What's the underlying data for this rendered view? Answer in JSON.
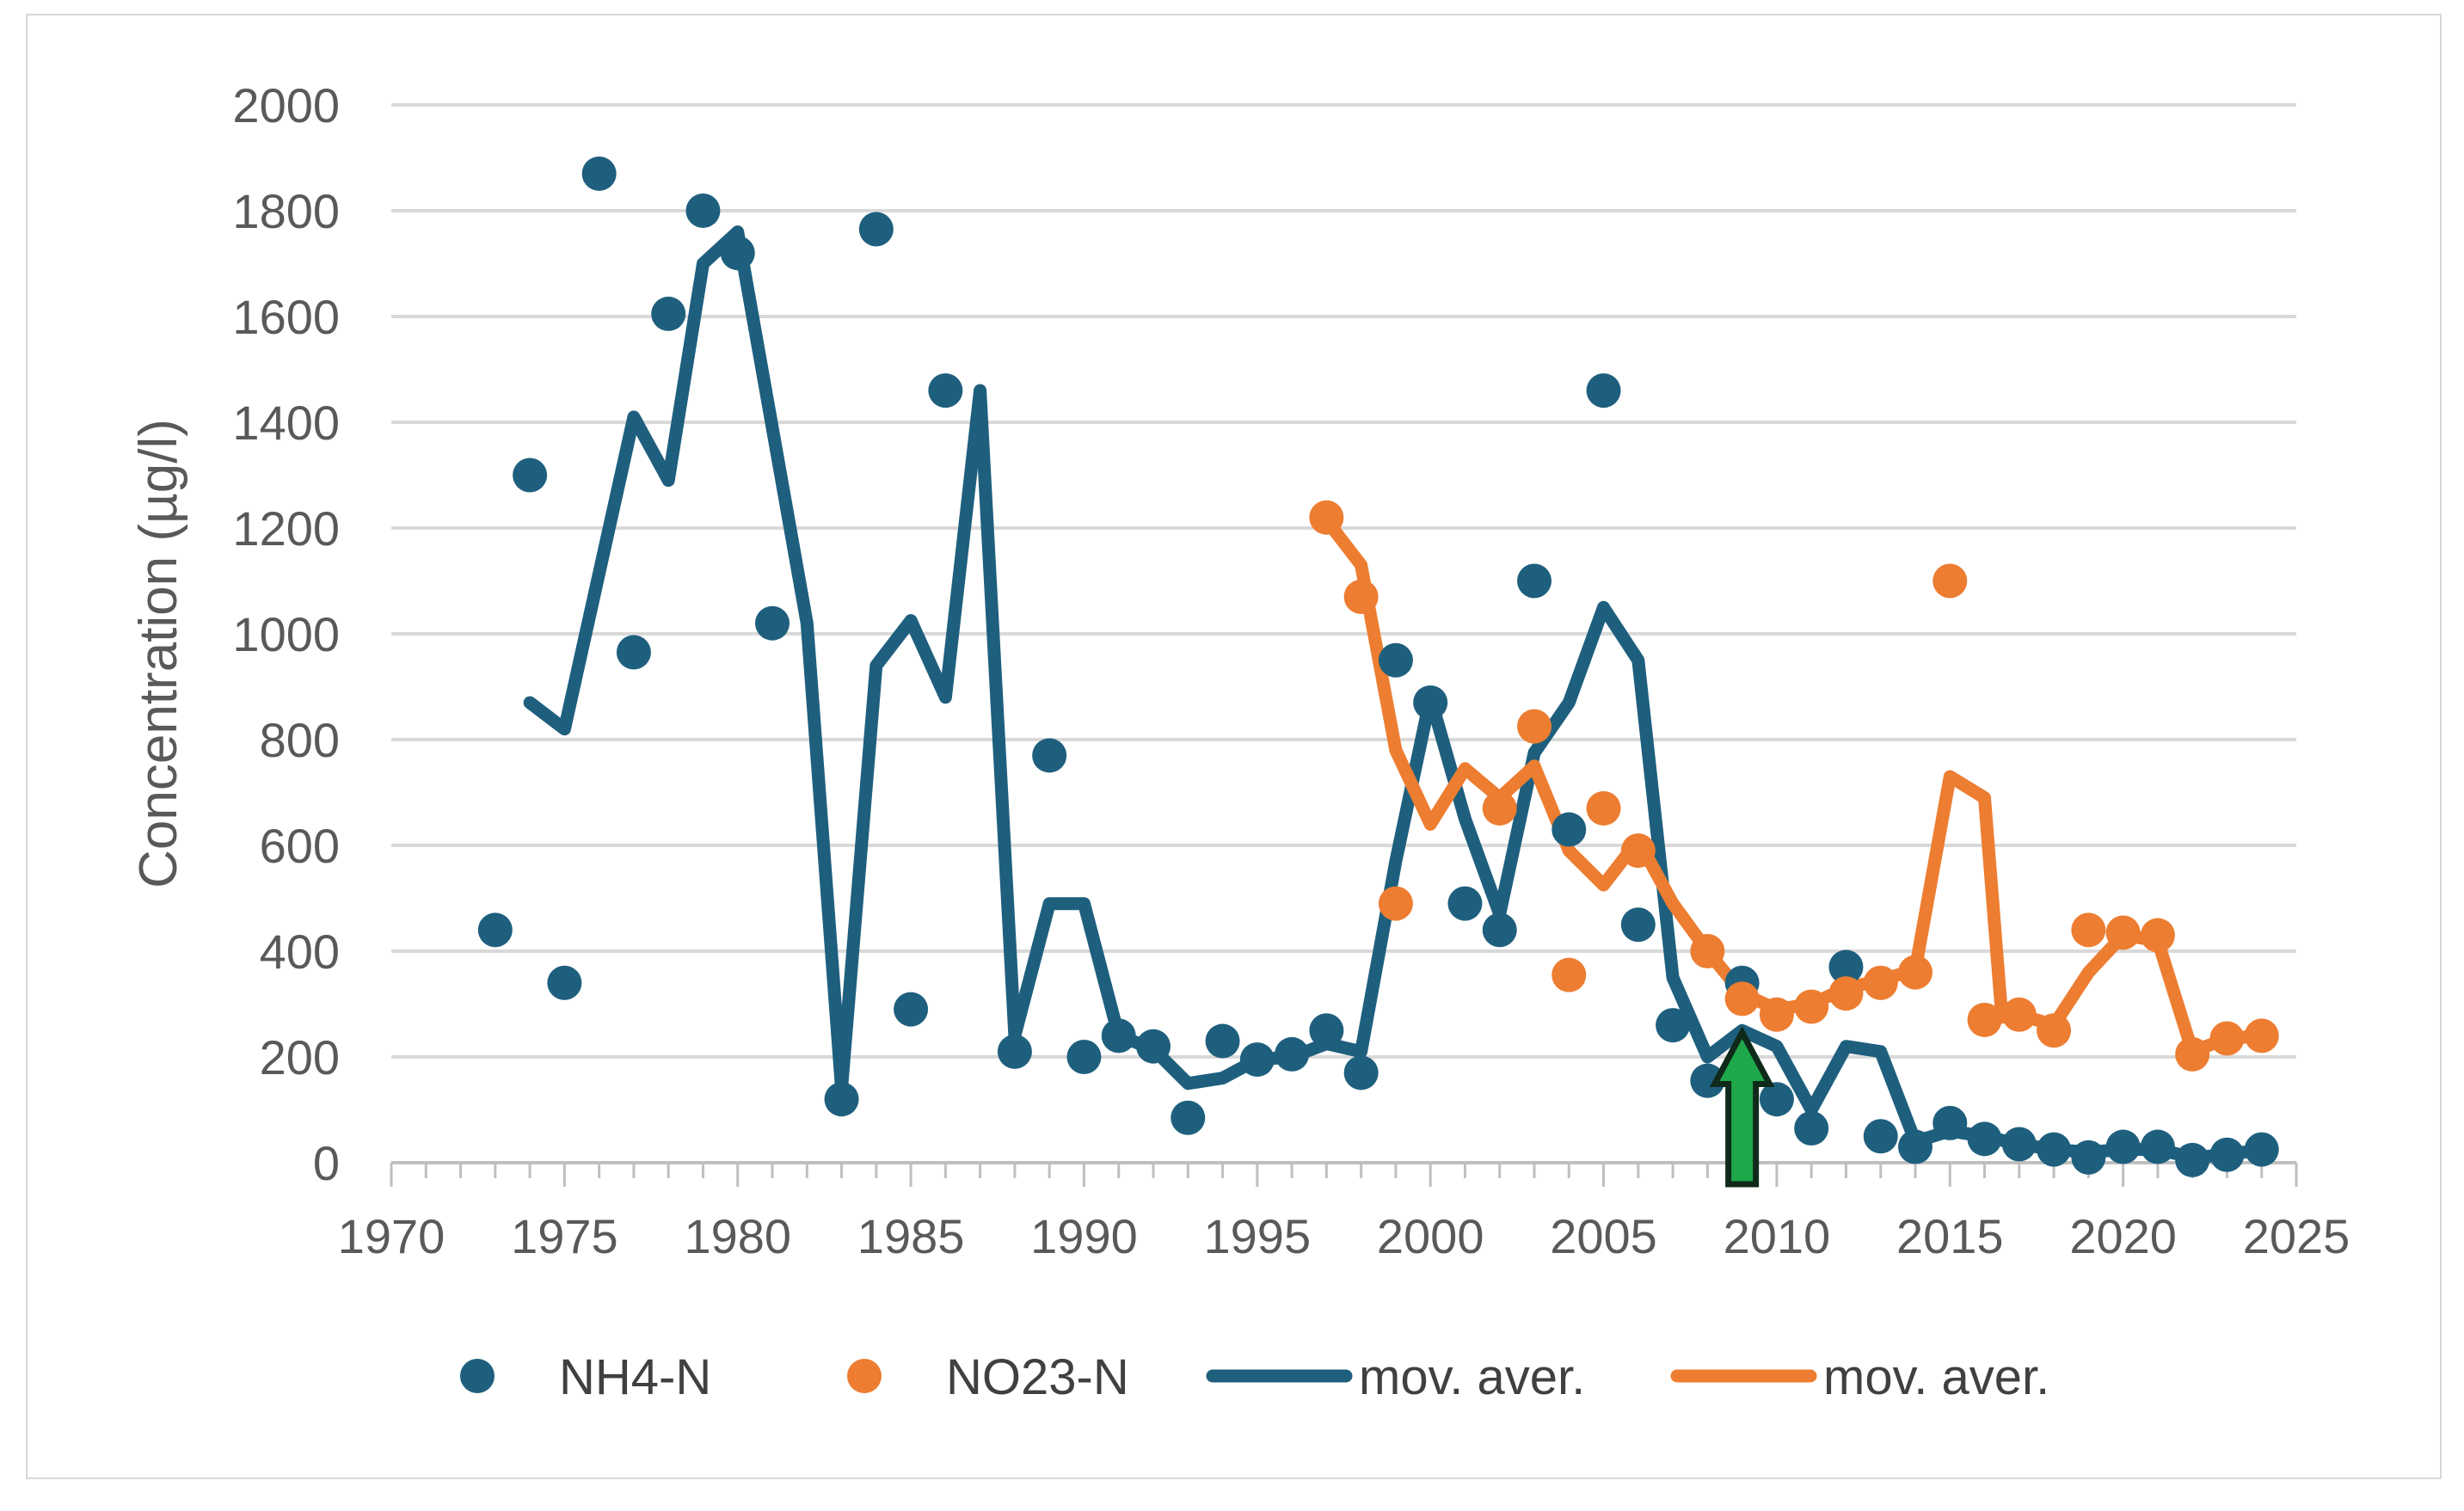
{
  "chart_data": {
    "type": "scatter",
    "title": "",
    "xlabel": "",
    "ylabel": "Concentration (µg/l)",
    "xlim": [
      1970,
      2025
    ],
    "ylim": [
      0,
      2000
    ],
    "x_ticks": [
      "1970",
      "1975",
      "1980",
      "1985",
      "1990",
      "1995",
      "2000",
      "2005",
      "2010",
      "2015",
      "2020",
      "2025"
    ],
    "y_ticks": [
      "0",
      "200",
      "400",
      "600",
      "800",
      "1000",
      "1200",
      "1400",
      "1600",
      "1800",
      "2000"
    ],
    "grid": "horizontal",
    "legend_position": "bottom",
    "colors": {
      "nh4": "#1f5f7e",
      "no23": "#ed7d31",
      "arrow": "#1ea84a",
      "grid": "#d9d9d9",
      "axis": "#bfbfbf"
    },
    "annotation": {
      "type": "arrow",
      "x": 2009,
      "y_from": 0,
      "y_to": 230,
      "label": ""
    },
    "series": [
      {
        "name": "NH4-N",
        "kind": "points",
        "color": "#1f5f7e",
        "points": [
          [
            1973,
            440
          ],
          [
            1974,
            1300
          ],
          [
            1975,
            340
          ],
          [
            1976,
            1870
          ],
          [
            1977,
            965
          ],
          [
            1978,
            1605
          ],
          [
            1979,
            1800
          ],
          [
            1980,
            1720
          ],
          [
            1981,
            1020
          ],
          [
            1983,
            120
          ],
          [
            1984,
            1765
          ],
          [
            1985,
            290
          ],
          [
            1986,
            1460
          ],
          [
            1988,
            210
          ],
          [
            1989,
            770
          ],
          [
            1990,
            200
          ],
          [
            1991,
            240
          ],
          [
            1992,
            220
          ],
          [
            1993,
            85
          ],
          [
            1994,
            230
          ],
          [
            1995,
            195
          ],
          [
            1996,
            205
          ],
          [
            1997,
            250
          ],
          [
            1998,
            170
          ],
          [
            1999,
            950
          ],
          [
            2000,
            870
          ],
          [
            2001,
            490
          ],
          [
            2002,
            440
          ],
          [
            2003,
            1100
          ],
          [
            2004,
            630
          ],
          [
            2005,
            1460
          ],
          [
            2006,
            450
          ],
          [
            2007,
            260
          ],
          [
            2008,
            155
          ],
          [
            2009,
            340
          ],
          [
            2010,
            120
          ],
          [
            2011,
            65
          ],
          [
            2012,
            370
          ],
          [
            2013,
            50
          ],
          [
            2014,
            30
          ],
          [
            2015,
            75
          ],
          [
            2016,
            45
          ],
          [
            2017,
            35
          ],
          [
            2018,
            25
          ],
          [
            2019,
            10
          ],
          [
            2020,
            30
          ],
          [
            2021,
            30
          ],
          [
            2022,
            5
          ],
          [
            2023,
            15
          ],
          [
            2024,
            25
          ]
        ]
      },
      {
        "name": "NO23-N",
        "kind": "points",
        "color": "#ed7d31",
        "points": [
          [
            1997,
            1220
          ],
          [
            1998,
            1070
          ],
          [
            1999,
            490
          ],
          [
            2002,
            670
          ],
          [
            2003,
            825
          ],
          [
            2004,
            355
          ],
          [
            2005,
            670
          ],
          [
            2006,
            590
          ],
          [
            2008,
            400
          ],
          [
            2009,
            310
          ],
          [
            2010,
            280
          ],
          [
            2011,
            295
          ],
          [
            2012,
            320
          ],
          [
            2013,
            340
          ],
          [
            2014,
            360
          ],
          [
            2015,
            1100
          ],
          [
            2016,
            270
          ],
          [
            2017,
            280
          ],
          [
            2018,
            250
          ],
          [
            2019,
            440
          ],
          [
            2020,
            435
          ],
          [
            2021,
            430
          ],
          [
            2022,
            205
          ],
          [
            2023,
            235
          ],
          [
            2024,
            240
          ]
        ]
      },
      {
        "name": "mov. aver.",
        "kind": "line",
        "color": "#1f5f7e",
        "points": [
          [
            1974,
            870
          ],
          [
            1975,
            820
          ],
          [
            1977,
            1410
          ],
          [
            1978,
            1290
          ],
          [
            1979,
            1700
          ],
          [
            1980,
            1760
          ],
          [
            1982,
            1020
          ],
          [
            1983,
            140
          ],
          [
            1984,
            940
          ],
          [
            1985,
            1025
          ],
          [
            1986,
            880
          ],
          [
            1987,
            1460
          ],
          [
            1988,
            240
          ],
          [
            1989,
            490
          ],
          [
            1990,
            490
          ],
          [
            1991,
            240
          ],
          [
            1992,
            215
          ],
          [
            1993,
            150
          ],
          [
            1994,
            160
          ],
          [
            1995,
            195
          ],
          [
            1996,
            200
          ],
          [
            1997,
            225
          ],
          [
            1998,
            210
          ],
          [
            1999,
            570
          ],
          [
            2000,
            880
          ],
          [
            2001,
            650
          ],
          [
            2002,
            470
          ],
          [
            2003,
            775
          ],
          [
            2004,
            870
          ],
          [
            2005,
            1050
          ],
          [
            2006,
            950
          ],
          [
            2007,
            350
          ],
          [
            2008,
            200
          ],
          [
            2009,
            250
          ],
          [
            2010,
            220
          ],
          [
            2011,
            100
          ],
          [
            2012,
            220
          ],
          [
            2013,
            210
          ],
          [
            2014,
            40
          ],
          [
            2015,
            60
          ],
          [
            2016,
            50
          ],
          [
            2017,
            35
          ],
          [
            2018,
            25
          ],
          [
            2019,
            20
          ],
          [
            2020,
            25
          ],
          [
            2021,
            25
          ],
          [
            2022,
            10
          ],
          [
            2023,
            15
          ],
          [
            2024,
            25
          ]
        ]
      },
      {
        "name": "mov. aver.",
        "kind": "line",
        "color": "#ed7d31",
        "points": [
          [
            1997,
            1215
          ],
          [
            1998,
            1130
          ],
          [
            1999,
            780
          ],
          [
            2000,
            640
          ],
          [
            2001,
            745
          ],
          [
            2002,
            690
          ],
          [
            2003,
            750
          ],
          [
            2004,
            590
          ],
          [
            2005,
            525
          ],
          [
            2006,
            610
          ],
          [
            2007,
            490
          ],
          [
            2008,
            400
          ],
          [
            2009,
            320
          ],
          [
            2010,
            290
          ],
          [
            2011,
            300
          ],
          [
            2012,
            330
          ],
          [
            2013,
            345
          ],
          [
            2014,
            365
          ],
          [
            2015,
            730
          ],
          [
            2016,
            690
          ],
          [
            2016.5,
            275
          ],
          [
            2017,
            280
          ],
          [
            2018,
            260
          ],
          [
            2019,
            360
          ],
          [
            2020,
            430
          ],
          [
            2021,
            420
          ],
          [
            2022,
            210
          ],
          [
            2023,
            235
          ],
          [
            2024,
            240
          ]
        ]
      }
    ]
  }
}
